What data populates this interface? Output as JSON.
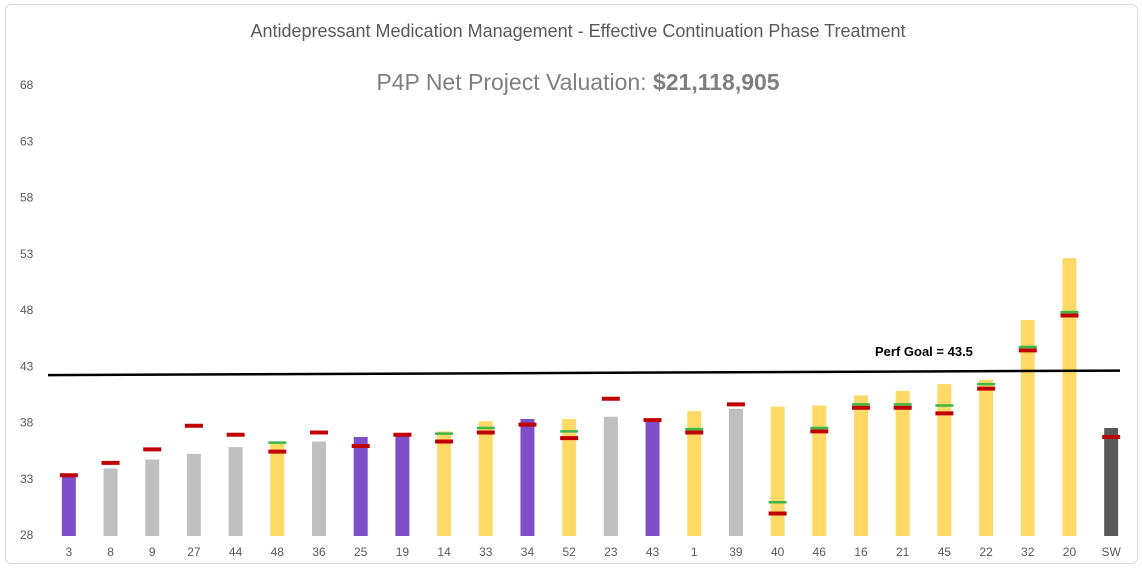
{
  "chart_data": {
    "type": "bar",
    "title": "Antidepressant Medication Management - Effective Continuation Phase Treatment",
    "subtitle": {
      "label": "P4P Net Project Valuation: ",
      "value": "$21,118,905"
    },
    "categories": [
      "3",
      "8",
      "9",
      "27",
      "44",
      "48",
      "36",
      "25",
      "19",
      "14",
      "33",
      "34",
      "52",
      "23",
      "43",
      "1",
      "39",
      "40",
      "46",
      "16",
      "21",
      "45",
      "22",
      "32",
      "20",
      "SW"
    ],
    "values": [
      33.4,
      34.0,
      34.8,
      35.3,
      35.9,
      36.3,
      36.4,
      36.8,
      37.0,
      37.3,
      38.2,
      38.4,
      38.4,
      38.6,
      38.4,
      39.1,
      39.3,
      39.5,
      39.6,
      40.5,
      40.9,
      41.5,
      41.9,
      47.2,
      52.7,
      37.6
    ],
    "colors": [
      "#7e4fc9",
      "#bfbfbf",
      "#bfbfbf",
      "#bfbfbf",
      "#bfbfbf",
      "#ffd966",
      "#bfbfbf",
      "#7e4fc9",
      "#7e4fc9",
      "#ffd966",
      "#ffd966",
      "#7e4fc9",
      "#ffd966",
      "#bfbfbf",
      "#7e4fc9",
      "#ffd966",
      "#bfbfbf",
      "#ffd966",
      "#ffd966",
      "#ffd966",
      "#ffd966",
      "#ffd966",
      "#ffd966",
      "#ffd966",
      "#ffd966",
      "#595959"
    ],
    "markers": [
      {
        "color": "#c00000",
        "values": [
          33.4,
          34.5,
          35.7,
          37.8,
          37.0,
          35.5,
          37.2,
          36.0,
          37.0,
          36.4,
          37.2,
          37.9,
          36.7,
          40.2,
          38.3,
          37.2,
          39.7,
          30.0,
          37.3,
          39.4,
          39.4,
          38.9,
          41.1,
          44.5,
          47.6,
          36.8
        ]
      },
      {
        "color": "#3cb64a",
        "values": [
          null,
          null,
          null,
          null,
          null,
          36.3,
          null,
          null,
          null,
          37.1,
          37.6,
          null,
          37.3,
          null,
          null,
          37.5,
          null,
          31.0,
          37.6,
          39.7,
          39.7,
          39.6,
          41.5,
          44.8,
          47.9,
          null
        ]
      }
    ],
    "goal_line": {
      "label": "Perf Goal = 43.5",
      "values": [
        42.3,
        42.7
      ]
    },
    "ylim": [
      28,
      68
    ],
    "yticks": [
      28,
      33,
      38,
      43,
      48,
      53,
      58,
      63,
      68
    ]
  }
}
